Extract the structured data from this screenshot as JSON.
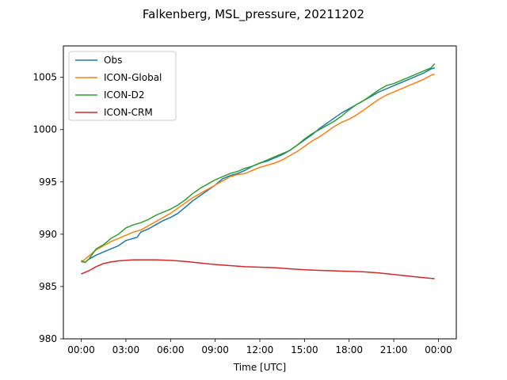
{
  "chart_data": {
    "type": "line",
    "title": "Falkenberg, MSL_pressure, 20211202",
    "xlabel": "Time [UTC]",
    "ylabel": "",
    "xlim": [
      -1.2,
      25.2
    ],
    "ylim": [
      980,
      1008
    ],
    "x_ticks": [
      0,
      3,
      6,
      9,
      12,
      15,
      18,
      21,
      24
    ],
    "x_tick_labels": [
      "00:00",
      "03:00",
      "06:00",
      "09:00",
      "12:00",
      "15:00",
      "18:00",
      "21:00",
      "00:00"
    ],
    "y_ticks": [
      980,
      985,
      990,
      995,
      1000,
      1005
    ],
    "y_tick_labels": [
      "980",
      "985",
      "990",
      "995",
      "1000",
      "1005"
    ],
    "grid": false,
    "legend_position": "top-left",
    "series": [
      {
        "name": "Obs",
        "color": "#1f77b4",
        "x": [
          0,
          0.25,
          0.5,
          0.75,
          1,
          1.5,
          2,
          2.5,
          3,
          3.25,
          3.5,
          3.75,
          4,
          4.5,
          5,
          5.5,
          6,
          6.5,
          7,
          7.5,
          8,
          8.5,
          9,
          9.5,
          10,
          10.5,
          11,
          11.5,
          12,
          12.5,
          13,
          13.5,
          14,
          14.5,
          15,
          15.5,
          16,
          16.5,
          17,
          17.5,
          18,
          18.5,
          19,
          19.5,
          20,
          20.5,
          21,
          21.5,
          22,
          22.5,
          23,
          23.5,
          23.75
        ],
        "y": [
          987.4,
          987.3,
          987.6,
          987.8,
          988.0,
          988.3,
          988.6,
          988.9,
          989.4,
          989.5,
          989.6,
          989.7,
          990.2,
          990.5,
          990.9,
          991.3,
          991.6,
          992.0,
          992.6,
          993.2,
          993.7,
          994.2,
          994.7,
          995.3,
          995.6,
          995.8,
          996.1,
          996.5,
          996.8,
          997.0,
          997.3,
          997.6,
          998.0,
          998.5,
          999.0,
          999.5,
          1000.1,
          1000.6,
          1001.1,
          1001.6,
          1002.0,
          1002.4,
          1002.8,
          1003.2,
          1003.6,
          1003.9,
          1004.2,
          1004.5,
          1004.8,
          1005.1,
          1005.4,
          1005.8,
          1005.9
        ]
      },
      {
        "name": "ICON-Global",
        "color": "#ff7f0e",
        "x": [
          0,
          0.5,
          1,
          1.5,
          2,
          2.5,
          3,
          3.5,
          4,
          4.5,
          5,
          5.5,
          6,
          6.5,
          7,
          7.5,
          8,
          8.5,
          9,
          9.5,
          10,
          10.5,
          11,
          11.5,
          12,
          12.5,
          13,
          13.5,
          14,
          14.5,
          15,
          15.5,
          16,
          16.5,
          17,
          17.5,
          18,
          18.5,
          19,
          19.5,
          20,
          20.5,
          21,
          21.5,
          22,
          22.5,
          23,
          23.5,
          23.75
        ],
        "y": [
          987.3,
          987.9,
          988.5,
          988.9,
          989.3,
          989.6,
          989.9,
          990.2,
          990.4,
          990.8,
          991.2,
          991.6,
          992.0,
          992.5,
          993.0,
          993.5,
          993.9,
          994.3,
          994.7,
          995.1,
          995.5,
          995.7,
          995.8,
          996.1,
          996.4,
          996.6,
          996.8,
          997.1,
          997.5,
          997.9,
          998.4,
          998.9,
          999.3,
          999.8,
          1000.3,
          1000.7,
          1001.0,
          1001.4,
          1001.9,
          1002.4,
          1002.9,
          1003.3,
          1003.6,
          1003.9,
          1004.2,
          1004.5,
          1004.8,
          1005.2,
          1005.3
        ]
      },
      {
        "name": "ICON-D2",
        "color": "#2ca02c",
        "x": [
          0,
          0.25,
          0.5,
          0.75,
          1,
          1.5,
          2,
          2.5,
          3,
          3.5,
          4,
          4.5,
          5,
          5.5,
          6,
          6.5,
          7,
          7.5,
          8,
          8.5,
          9,
          9.5,
          10,
          10.5,
          11,
          11.5,
          12,
          12.5,
          13,
          13.5,
          14,
          14.5,
          15,
          15.5,
          16,
          16.5,
          17,
          17.5,
          18,
          18.5,
          19,
          19.5,
          20,
          20.5,
          21,
          21.5,
          22,
          22.5,
          23,
          23.5,
          23.75
        ],
        "y": [
          987.5,
          987.3,
          987.6,
          988.1,
          988.6,
          989.0,
          989.6,
          990.0,
          990.6,
          990.9,
          991.1,
          991.4,
          991.8,
          992.1,
          992.4,
          992.8,
          993.3,
          993.9,
          994.4,
          994.8,
          995.2,
          995.5,
          995.8,
          996.0,
          996.3,
          996.5,
          996.8,
          997.1,
          997.4,
          997.7,
          998.0,
          998.5,
          999.1,
          999.6,
          1000.0,
          1000.4,
          1000.8,
          1001.3,
          1001.9,
          1002.4,
          1002.8,
          1003.3,
          1003.8,
          1004.2,
          1004.4,
          1004.7,
          1005.0,
          1005.3,
          1005.6,
          1005.9,
          1006.3
        ]
      },
      {
        "name": "ICON-CRM",
        "color": "#d62728",
        "x": [
          0,
          0.5,
          1,
          1.5,
          2,
          2.5,
          3,
          3.5,
          4,
          5,
          6,
          7,
          8,
          9,
          10,
          11,
          12,
          13,
          14,
          15,
          16,
          17,
          18,
          19,
          20,
          21,
          22,
          23,
          23.75
        ],
        "y": [
          986.2,
          986.5,
          986.9,
          987.2,
          987.35,
          987.45,
          987.5,
          987.55,
          987.55,
          987.55,
          987.5,
          987.4,
          987.25,
          987.1,
          987.0,
          986.9,
          986.85,
          986.8,
          986.7,
          986.6,
          986.55,
          986.5,
          986.45,
          986.4,
          986.3,
          986.15,
          986.0,
          985.85,
          985.75
        ]
      }
    ]
  }
}
